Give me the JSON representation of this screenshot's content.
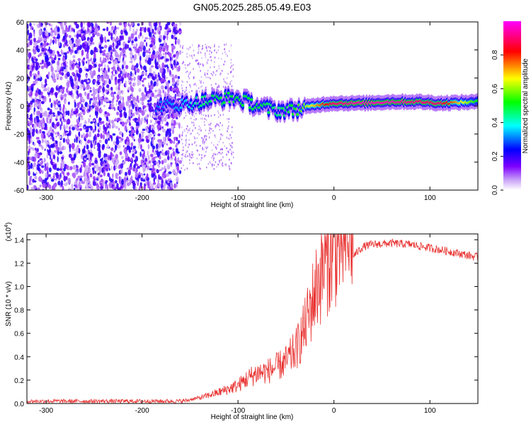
{
  "figure_title": "GN05.2025.285.05.49.E03",
  "chart_data": [
    {
      "type": "heatmap",
      "xlabel": "Height of straight line (km)",
      "ylabel": "Frequency (Hz)",
      "xlim": [
        -320,
        150
      ],
      "ylim": [
        -60,
        60
      ],
      "xticks": [
        -300,
        -200,
        -100,
        0,
        100
      ],
      "yticks": [
        -60,
        -40,
        -20,
        0,
        20,
        40,
        60
      ],
      "colorbar": {
        "label": "Normalized spectral amplitude",
        "range": [
          0,
          1
        ],
        "ticks": [
          0.0,
          0.2,
          0.4,
          0.6,
          0.8
        ],
        "colors": [
          "#ffffff",
          "#7f00ff",
          "#0000ff",
          "#00ffff",
          "#00ff00",
          "#ffff00",
          "#ff0000",
          "#ff00ff"
        ]
      },
      "noise_region_x": [
        -320,
        -160
      ],
      "ridge": [
        {
          "x": -185,
          "y": 0,
          "amp": 0.3
        },
        {
          "x": -160,
          "y": 1,
          "amp": 0.35
        },
        {
          "x": -140,
          "y": 3,
          "amp": 0.45
        },
        {
          "x": -120,
          "y": 5,
          "amp": 0.5
        },
        {
          "x": -105,
          "y": 6,
          "amp": 0.5
        },
        {
          "x": -90,
          "y": 3,
          "amp": 0.5
        },
        {
          "x": -75,
          "y": -1,
          "amp": 0.5
        },
        {
          "x": -60,
          "y": -3,
          "amp": 0.45
        },
        {
          "x": -45,
          "y": -3,
          "amp": 0.5
        },
        {
          "x": -30,
          "y": -1,
          "amp": 0.6
        },
        {
          "x": -15,
          "y": 1,
          "amp": 0.75
        },
        {
          "x": 0,
          "y": 2,
          "amp": 0.9
        },
        {
          "x": 30,
          "y": 2,
          "amp": 0.95
        },
        {
          "x": 60,
          "y": 3,
          "amp": 0.95
        },
        {
          "x": 90,
          "y": 3,
          "amp": 0.9
        },
        {
          "x": 110,
          "y": 2,
          "amp": 0.9
        },
        {
          "x": 150,
          "y": 3,
          "amp": 0.5
        }
      ]
    },
    {
      "type": "line",
      "xlabel": "Height of straight line (km)",
      "ylabel": "SNR (10 * v/v)",
      "y_multiplier_label": "(x10",
      "y_multiplier_exp": "4",
      "y_multiplier_close": ")",
      "xlim": [
        -320,
        150
      ],
      "ylim": [
        0,
        1.45
      ],
      "xticks": [
        -300,
        -200,
        -100,
        0,
        100
      ],
      "yticks": [
        0.0,
        0.2,
        0.4,
        0.6,
        0.8,
        1.0,
        1.2,
        1.4
      ],
      "color": "#e8312f",
      "series": [
        {
          "x": [
            -320,
            -250,
            -200,
            -160,
            -140,
            -120,
            -100,
            -90,
            -80,
            -70,
            -60,
            -50,
            -40,
            -30,
            -20,
            -10,
            0,
            10,
            20,
            30,
            40,
            60,
            80,
            100,
            120,
            150
          ],
          "y": [
            0.02,
            0.02,
            0.02,
            0.02,
            0.04,
            0.08,
            0.13,
            0.18,
            0.22,
            0.23,
            0.26,
            0.3,
            0.38,
            0.55,
            0.8,
            1.0,
            1.12,
            1.18,
            1.26,
            1.34,
            1.36,
            1.37,
            1.36,
            1.33,
            1.3,
            1.25
          ]
        }
      ]
    }
  ]
}
